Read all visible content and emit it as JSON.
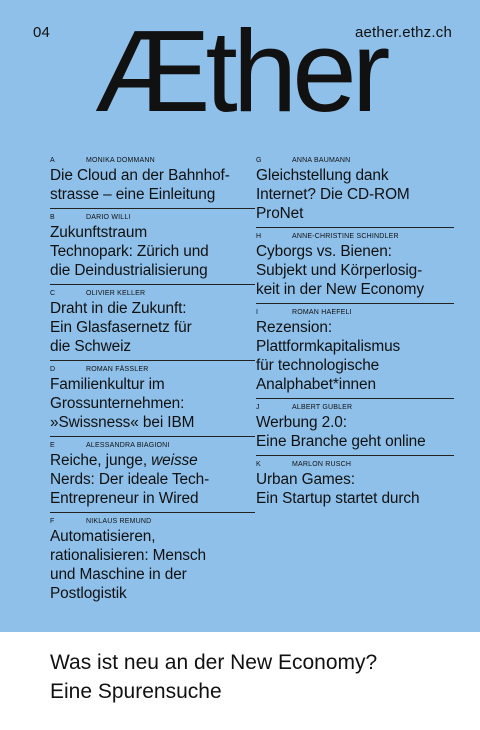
{
  "header": {
    "issue": "04",
    "site": "aether.ethz.ch",
    "logo": "Æther"
  },
  "contents_left": [
    {
      "letter": "A",
      "author": "MONIKA DOMMANN",
      "lines": [
        "Die Cloud an der Bahnhof-",
        "strasse – eine Einleitung"
      ]
    },
    {
      "letter": "B",
      "author": "DARIO WILLI",
      "lines": [
        "Zukunftstraum",
        "Technopark: Zürich und",
        "die Deindustrialisierung"
      ]
    },
    {
      "letter": "C",
      "author": "OLIVIER KELLER",
      "lines": [
        "Draht in die Zukunft:",
        "Ein Glasfasernetz für",
        "die Schweiz"
      ]
    },
    {
      "letter": "D",
      "author": "ROMAN FÄSSLER",
      "lines": [
        "Familienkultur im",
        "Grossunternehmen:",
        "»Swissness« bei IBM"
      ]
    },
    {
      "letter": "E",
      "author": "ALESSANDRA BIAGIONI",
      "line1_pre": "Reiche, junge, ",
      "line1_em": "weisse",
      "lines": [
        "Nerds: Der ideale Tech-",
        "Entrepreneur in Wired"
      ]
    },
    {
      "letter": "F",
      "author": "NIKLAUS REMUND",
      "lines": [
        "Automatisieren,",
        "rationalisieren: Mensch",
        "und Maschine in der",
        "Postlogistik"
      ]
    }
  ],
  "contents_right": [
    {
      "letter": "G",
      "author": "ANNA BAUMANN",
      "lines": [
        "Gleichstellung dank",
        "Internet? Die CD-ROM",
        "ProNet"
      ]
    },
    {
      "letter": "H",
      "author": "ANNE-CHRISTINE SCHINDLER",
      "lines": [
        "Cyborgs vs. Bienen:",
        "Subjekt und Körperlosig-",
        "keit in der New Economy"
      ]
    },
    {
      "letter": "I",
      "author": "ROMAN HAEFELI",
      "lines": [
        "Rezension:",
        "Plattformkapitalismus",
        "für technologische",
        "Analphabet*innen"
      ]
    },
    {
      "letter": "J",
      "author": "ALBERT GUBLER",
      "lines": [
        "Werbung 2.0:",
        "Eine Branche geht online"
      ]
    },
    {
      "letter": "K",
      "author": "MARLON RUSCH",
      "lines": [
        "Urban Games:",
        "Ein Startup startet durch"
      ]
    }
  ],
  "footer": {
    "line1": "Was ist neu an der New Economy?",
    "line2": "Eine Spurensuche"
  }
}
